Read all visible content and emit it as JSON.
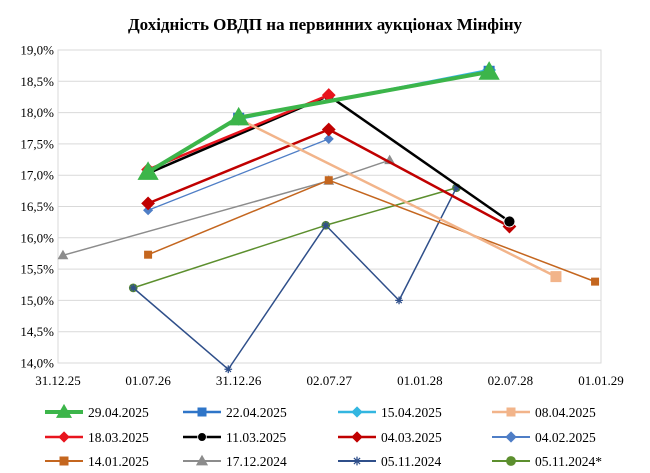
{
  "chart_data": {
    "type": "line",
    "title": "Дохідність ОВДП на первинних аукціонах Мінфіну",
    "xlabel": "",
    "ylabel": "",
    "ylim": [
      14.0,
      19.0
    ],
    "xlim": [
      "2025-12-31",
      "2029-01-01"
    ],
    "y_ticks": [
      "14,0%",
      "14,5%",
      "15,0%",
      "15,5%",
      "16,0%",
      "16,5%",
      "17,0%",
      "17,5%",
      "18,0%",
      "18,5%",
      "19,0%"
    ],
    "x_ticks": [
      {
        "date": "2025-12-31",
        "label": "31.12.25"
      },
      {
        "date": "2026-07-01",
        "label": "01.07.26"
      },
      {
        "date": "2026-12-31",
        "label": "31.12.26"
      },
      {
        "date": "2027-07-02",
        "label": "02.07.27"
      },
      {
        "date": "2028-01-01",
        "label": "01.01.28"
      },
      {
        "date": "2028-07-02",
        "label": "02.07.28"
      },
      {
        "date": "2029-01-01",
        "label": "01.01.29"
      }
    ],
    "grid": "horizontal",
    "legend_position": "bottom",
    "series": [
      {
        "name": "29.04.2025",
        "color": "#3cb54a",
        "marker": "triangle",
        "width": 4,
        "points": [
          [
            "2026-07-01",
            17.05
          ],
          [
            "2026-12-31",
            17.92
          ],
          [
            "2028-05-20",
            18.65
          ]
        ]
      },
      {
        "name": "22.04.2025",
        "color": "#2e75c8",
        "marker": "square",
        "width": 2.5,
        "points": [
          [
            "2026-12-31",
            17.91
          ],
          [
            "2028-05-20",
            18.66
          ]
        ]
      },
      {
        "name": "15.04.2025",
        "color": "#33b6e0",
        "marker": "diamond",
        "width": 2.5,
        "points": [
          [
            "2026-12-31",
            17.9
          ],
          [
            "2028-05-20",
            18.68
          ]
        ]
      },
      {
        "name": "08.04.2025",
        "color": "#f2b48a",
        "marker": "square",
        "width": 2.5,
        "points": [
          [
            "2026-12-31",
            17.9
          ],
          [
            "2028-10-02",
            15.38
          ]
        ]
      },
      {
        "name": "18.03.2025",
        "color": "#e8141e",
        "marker": "diamond",
        "width": 2.5,
        "points": [
          [
            "2026-07-01",
            17.09
          ],
          [
            "2027-07-01",
            18.28
          ]
        ]
      },
      {
        "name": "11.03.2025",
        "color": "#000000",
        "marker": "circle",
        "width": 2.5,
        "points": [
          [
            "2026-07-01",
            17.03
          ],
          [
            "2027-07-01",
            18.27
          ],
          [
            "2028-06-30",
            16.26
          ]
        ]
      },
      {
        "name": "04.03.2025",
        "color": "#c00000",
        "marker": "diamond",
        "width": 2.5,
        "points": [
          [
            "2026-07-01",
            16.55
          ],
          [
            "2027-07-01",
            17.73
          ],
          [
            "2028-06-30",
            16.18
          ]
        ]
      },
      {
        "name": "04.02.2025",
        "color": "#4f7ec6",
        "marker": "diamond",
        "width": 1.3,
        "points": [
          [
            "2026-07-01",
            16.44
          ],
          [
            "2027-07-01",
            17.58
          ]
        ]
      },
      {
        "name": "14.01.2025",
        "color": "#c4661f",
        "marker": "square",
        "width": 1.5,
        "points": [
          [
            "2026-07-01",
            15.73
          ],
          [
            "2027-07-01",
            16.92
          ],
          [
            "2028-12-20",
            15.3
          ]
        ]
      },
      {
        "name": "17.12.2024",
        "color": "#8c8c8c",
        "marker": "triangle",
        "width": 1.5,
        "points": [
          [
            "2026-01-10",
            15.72
          ],
          [
            "2027-07-01",
            16.91
          ],
          [
            "2027-11-01",
            17.24
          ]
        ]
      },
      {
        "name": "05.11.2024",
        "color": "#2f4f8a",
        "marker": "star",
        "width": 1.5,
        "points": [
          [
            "2026-06-01",
            15.2
          ],
          [
            "2026-12-10",
            13.9
          ],
          [
            "2027-06-25",
            16.2
          ],
          [
            "2027-11-20",
            15.0
          ],
          [
            "2028-03-15",
            16.8
          ]
        ]
      },
      {
        "name": "05.11.2024*",
        "color": "#5c8f2e",
        "marker": "circle",
        "width": 1.5,
        "points": [
          [
            "2026-06-01",
            15.2
          ],
          [
            "2027-06-25",
            16.2
          ],
          [
            "2028-03-15",
            16.8
          ]
        ]
      }
    ]
  }
}
